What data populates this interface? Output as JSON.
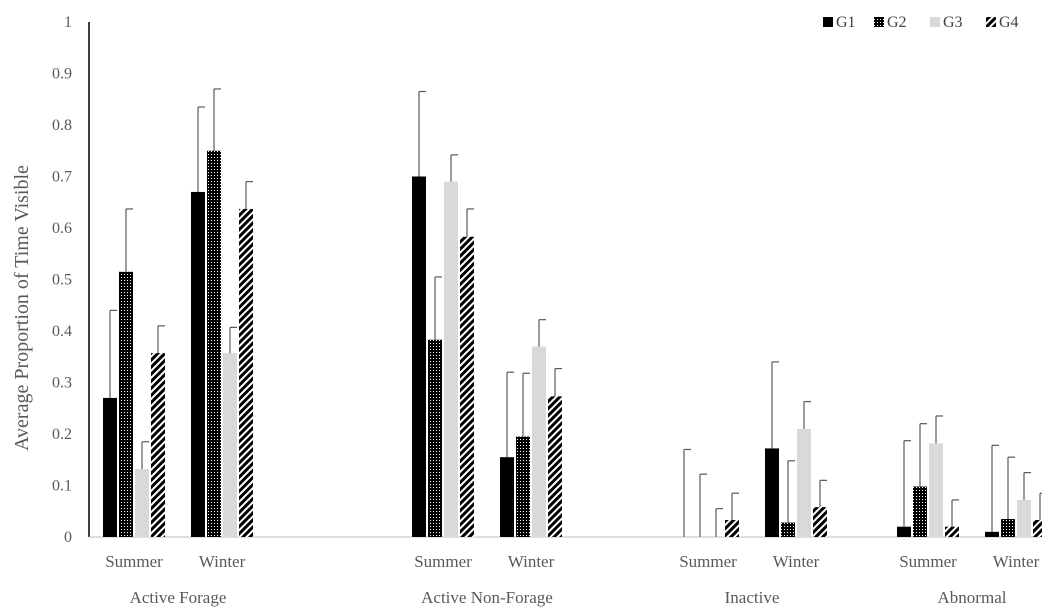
{
  "chart_data": {
    "type": "bar",
    "title": "",
    "ylabel": "Average Proportion of Time Visible",
    "ylim": [
      0,
      1
    ],
    "yticks": [
      "0",
      "0.1",
      "0.2",
      "0.3",
      "0.4",
      "0.5",
      "0.6",
      "0.7",
      "0.8",
      "0.9",
      "1"
    ],
    "grid": false,
    "legend_position": "top-right",
    "groups": [
      {
        "label": "Active Forage",
        "categories": [
          "Summer",
          "Winter"
        ]
      },
      {
        "label": "Active Non-Forage",
        "categories": [
          "Summer",
          "Winter"
        ]
      },
      {
        "label": "Inactive",
        "categories": [
          "Summer",
          "Winter"
        ]
      },
      {
        "label": "Abnormal",
        "categories": [
          "Summer",
          "Winter"
        ]
      }
    ],
    "series": [
      {
        "name": "G1",
        "pattern": "solid",
        "color": "#000000",
        "values": [
          0.27,
          0.67,
          0.7,
          0.155,
          0.0,
          0.172,
          0.02,
          0.01
        ],
        "error_upper": [
          0.44,
          0.835,
          0.865,
          0.32,
          0.17,
          0.34,
          0.187,
          0.178
        ]
      },
      {
        "name": "G2",
        "pattern": "grid",
        "color": "#000000",
        "values": [
          0.515,
          0.75,
          0.383,
          0.195,
          0.0,
          0.028,
          0.098,
          0.035
        ],
        "error_upper": [
          0.637,
          0.87,
          0.505,
          0.318,
          0.122,
          0.148,
          0.22,
          0.155
        ]
      },
      {
        "name": "G3",
        "pattern": "solid",
        "color": "#d9d9d9",
        "values": [
          0.132,
          0.357,
          0.69,
          0.37,
          0.0,
          0.21,
          0.182,
          0.072
        ],
        "error_upper": [
          0.185,
          0.407,
          0.742,
          0.422,
          0.055,
          0.263,
          0.235,
          0.125
        ]
      },
      {
        "name": "G4",
        "pattern": "diagonal",
        "color": "#000000",
        "values": [
          0.357,
          0.637,
          0.583,
          0.273,
          0.033,
          0.058,
          0.02,
          0.033
        ],
        "error_upper": [
          0.41,
          0.69,
          0.637,
          0.327,
          0.085,
          0.11,
          0.072,
          0.085
        ]
      }
    ]
  }
}
